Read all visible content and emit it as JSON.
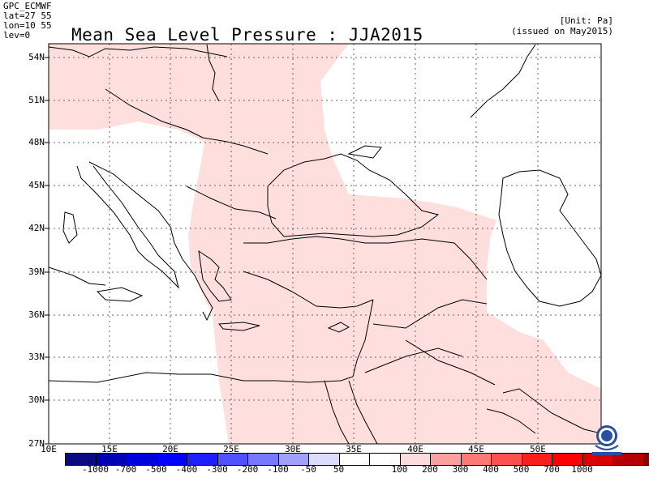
{
  "header": {
    "source": "GPC_ECMWF",
    "lat": "lat=27 55",
    "lon": "lon=10 55",
    "lev": "lev=0",
    "title": "Mean Sea Level Pressure : JJA2015",
    "unit": "[Unit: Pa]",
    "issued": "(issued on May2015)"
  },
  "axes": {
    "lat_labels": [
      "54N",
      "51N",
      "48N",
      "45N",
      "42N",
      "39N",
      "36N",
      "33N",
      "30N",
      "27N"
    ],
    "lon_labels": [
      "10E",
      "15E",
      "20E",
      "25E",
      "30E",
      "35E",
      "40E",
      "45E",
      "50E"
    ]
  },
  "colorbar": {
    "colors": [
      "#0a0a82",
      "#0000b4",
      "#0000dc",
      "#0000ff",
      "#1e1eff",
      "#5050ff",
      "#7878ff",
      "#a0a0ff",
      "#dcdcff",
      "#ffffff",
      "#ffffff",
      "#ffdcdc",
      "#ffa0a0",
      "#ff7878",
      "#ff5050",
      "#ff1e1e",
      "#ff0000",
      "#dc0000",
      "#b40000",
      "#820a0a"
    ],
    "labels": [
      "-1000",
      "-700",
      "-500",
      "-400",
      "-300",
      "-200",
      "-100",
      "-50",
      "50",
      "100",
      "200",
      "300",
      "400",
      "500",
      "700",
      "1000"
    ]
  },
  "map": {
    "anomaly_fill_color": "#ffdede",
    "legend_value_shown": "50 to 100 Pa"
  },
  "logo": {
    "name": "WMO"
  }
}
